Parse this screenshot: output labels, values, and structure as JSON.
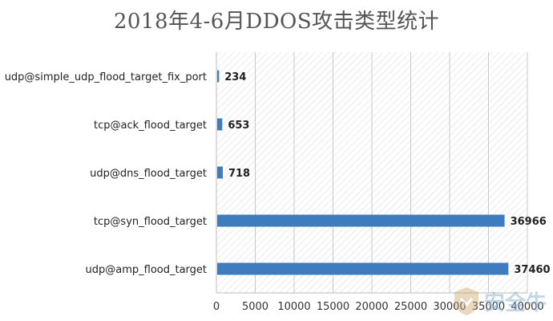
{
  "chart_data": {
    "type": "bar",
    "orientation": "horizontal",
    "title": "2018年4-6月DDOS攻击类型统计",
    "categories": [
      "udp@simple_udp_flood_target_fix_port",
      "tcp@ack_flood_target",
      "udp@dns_flood_target",
      "tcp@syn_flood_target",
      "udp@amp_flood_target"
    ],
    "values": [
      234,
      653,
      718,
      36966,
      37460
    ],
    "data_labels": [
      "234",
      "653",
      "718",
      "36966",
      "37460"
    ],
    "xlim": [
      0,
      40000
    ],
    "x_ticks": [
      "0",
      "5000",
      "10000",
      "15000",
      "20000",
      "25000",
      "30000",
      "35000",
      "40000"
    ],
    "bar_color": "#3f7bbf",
    "grid": "vertical, hatched background"
  },
  "watermark": {
    "text": "安全牛"
  }
}
